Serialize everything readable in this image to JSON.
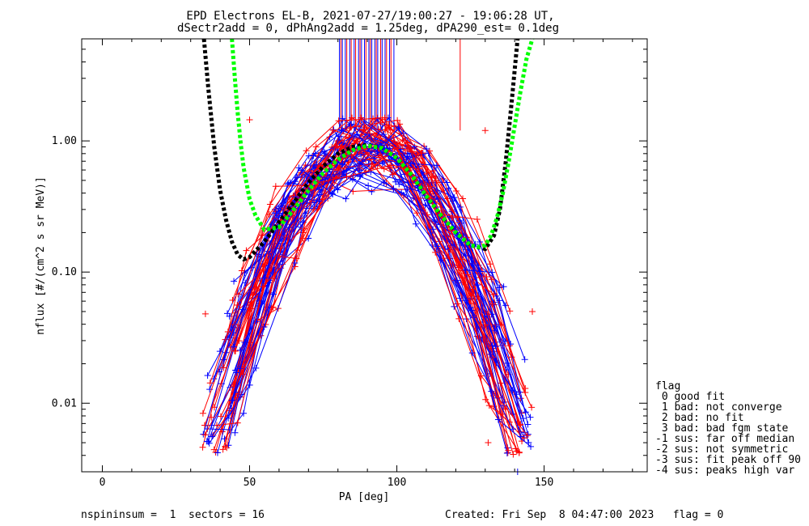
{
  "chart_data": {
    "type": "line",
    "title_line1": "EPD Electrons EL-B, 2021-07-27/19:00:27 - 19:06:28 UT,",
    "title_line2": "dSectr2add = 0, dPhAng2add = 1.25deg, dPA290_est=   0.1deg",
    "xlabel": "PA [deg]",
    "ylabel": "nflux [#/(cm^2 s sr MeV)]",
    "xlim": [
      -7,
      185
    ],
    "ylim": [
      0.003,
      6
    ],
    "y_scale": "log",
    "x_ticks": [
      0,
      50,
      100,
      150
    ],
    "x_tick_labels": [
      "0",
      "50",
      "100",
      "150"
    ],
    "y_ticks": [
      0.01,
      0.1,
      1.0
    ],
    "y_tick_labels": [
      "0.01",
      "0.10",
      "1.00"
    ],
    "series_colors": {
      "red": "#ff0000",
      "blue": "#0000ff",
      "black_fit": "#000000",
      "green_fit": "#00ff00"
    },
    "fits": [
      {
        "color": "black",
        "style": "dotted",
        "x": [
          34.5,
          36,
          38,
          40,
          42,
          44,
          46,
          48,
          50,
          55,
          60,
          65,
          70,
          75,
          80,
          85,
          90,
          95,
          100,
          105,
          110,
          115,
          120,
          125,
          130,
          133,
          135,
          137,
          139,
          141
        ],
        "y": [
          6.0,
          2.5,
          0.9,
          0.42,
          0.25,
          0.17,
          0.135,
          0.125,
          0.13,
          0.17,
          0.24,
          0.34,
          0.48,
          0.64,
          0.8,
          0.9,
          0.93,
          0.88,
          0.74,
          0.55,
          0.38,
          0.27,
          0.2,
          0.16,
          0.15,
          0.19,
          0.3,
          0.7,
          2.0,
          6.0
        ]
      },
      {
        "color": "green",
        "style": "dotted",
        "x": [
          44,
          45,
          46,
          47,
          48,
          50,
          52,
          55,
          60,
          65,
          70,
          75,
          80,
          85,
          90,
          95,
          100,
          105,
          110,
          115,
          120,
          125,
          128,
          130,
          132,
          134,
          136,
          138,
          140,
          142,
          144,
          146
        ],
        "y": [
          6.0,
          3.0,
          1.6,
          0.95,
          0.62,
          0.36,
          0.27,
          0.21,
          0.22,
          0.3,
          0.42,
          0.57,
          0.72,
          0.85,
          0.92,
          0.88,
          0.74,
          0.55,
          0.38,
          0.27,
          0.2,
          0.16,
          0.155,
          0.16,
          0.19,
          0.26,
          0.4,
          0.7,
          1.3,
          2.4,
          4.2,
          6.0
        ]
      }
    ],
    "vertical_lines": {
      "blue_x": [
        80.5,
        81.5,
        82.5,
        84,
        85.5,
        87,
        88,
        89,
        90.5,
        91.5,
        92.5,
        93.5,
        95,
        96,
        97.5,
        99
      ],
      "red_x": [
        81,
        83,
        84.5,
        86,
        87.5,
        89.5,
        91,
        93,
        94.5,
        96.5,
        98,
        121.5
      ],
      "y_top": 6.0,
      "y_bottom": 1.2
    },
    "scatter_summary": {
      "description_values": "Many red and blue '+' sample traces falling from ~1.0 near PA 90 to ~0.01 near PA 40 and PA 140",
      "pa_range": [
        34,
        146
      ],
      "nflux_range": [
        0.003,
        1.5
      ]
    },
    "legend": {
      "placement": "lower-right outside",
      "title": "flag",
      "entries": [
        " 0 good fit",
        " 1 bad: not converge",
        " 2 bad: no fit",
        " 3 bad: bad fgm state",
        "-1 sus: far off median",
        "-2 sus: not symmetric",
        "-3 sus: fit peak off 90",
        "-4 sus: peaks high var"
      ]
    },
    "footer": {
      "left": "nspininsum =  1  sectors = 16",
      "right": "Created: Fri Sep  8 04:47:00 2023   flag = 0"
    }
  }
}
